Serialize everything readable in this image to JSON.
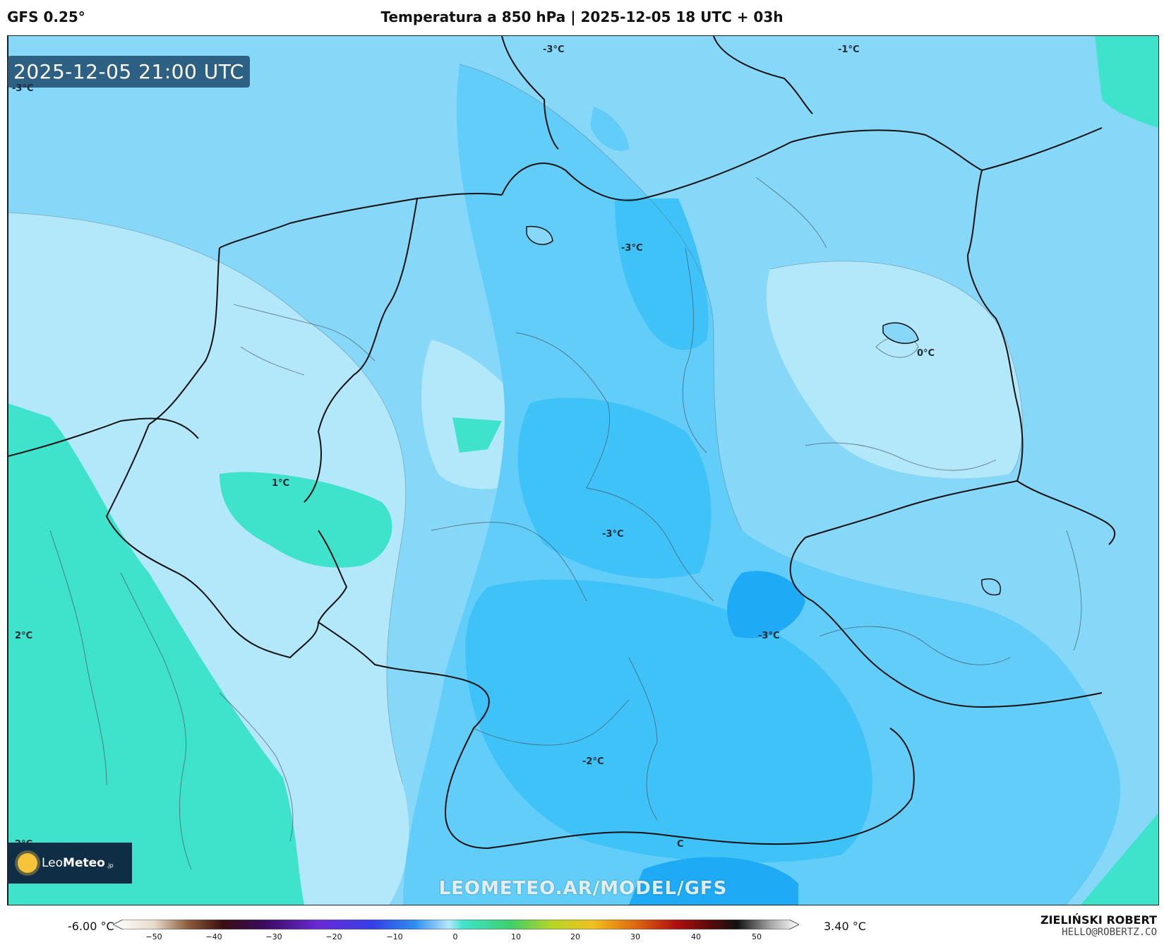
{
  "header": {
    "model": "GFS 0.25°",
    "title": "Temperatura a 850 hPa | 2025-12-05 18 UTC + 03h"
  },
  "map": {
    "valid_time": "2025-12-05 21:00 UTC",
    "watermark": "LEOMETEO.AR/MODEL/GFS",
    "logo": {
      "brand_light": "Leo",
      "brand_bold": "Meteo",
      "suffix": ".jp"
    },
    "labels": [
      {
        "text": "-3°C"
      },
      {
        "text": "-3°C"
      },
      {
        "text": "-1°C"
      },
      {
        "text": "-3°C"
      },
      {
        "text": "0°C"
      },
      {
        "text": "1°C"
      },
      {
        "text": "-3°C"
      },
      {
        "text": "-3°C"
      },
      {
        "text": "2°C"
      },
      {
        "text": "-2°C"
      },
      {
        "text": "2°C"
      },
      {
        "text": "C"
      }
    ],
    "colors": {
      "band_warm": "#3fe3cc",
      "band_0": "#b3e8fa",
      "band_m1": "#87d8f8",
      "band_m2": "#61cdf8",
      "band_m3": "#3ec2f8",
      "band_m4": "#1eaaf4",
      "border": "#111111",
      "admin": "#4a5560"
    }
  },
  "legend": {
    "min_label": "-6.00 °C",
    "max_label": "3.40 °C",
    "ticks": [
      "−50",
      "−40",
      "−30",
      "−20",
      "−10",
      "0",
      "10",
      "20",
      "30",
      "40",
      "50"
    ]
  },
  "author": {
    "name": "ZIELIŃSKI ROBERT",
    "email": "HELLO@ROBERTZ.CO"
  }
}
